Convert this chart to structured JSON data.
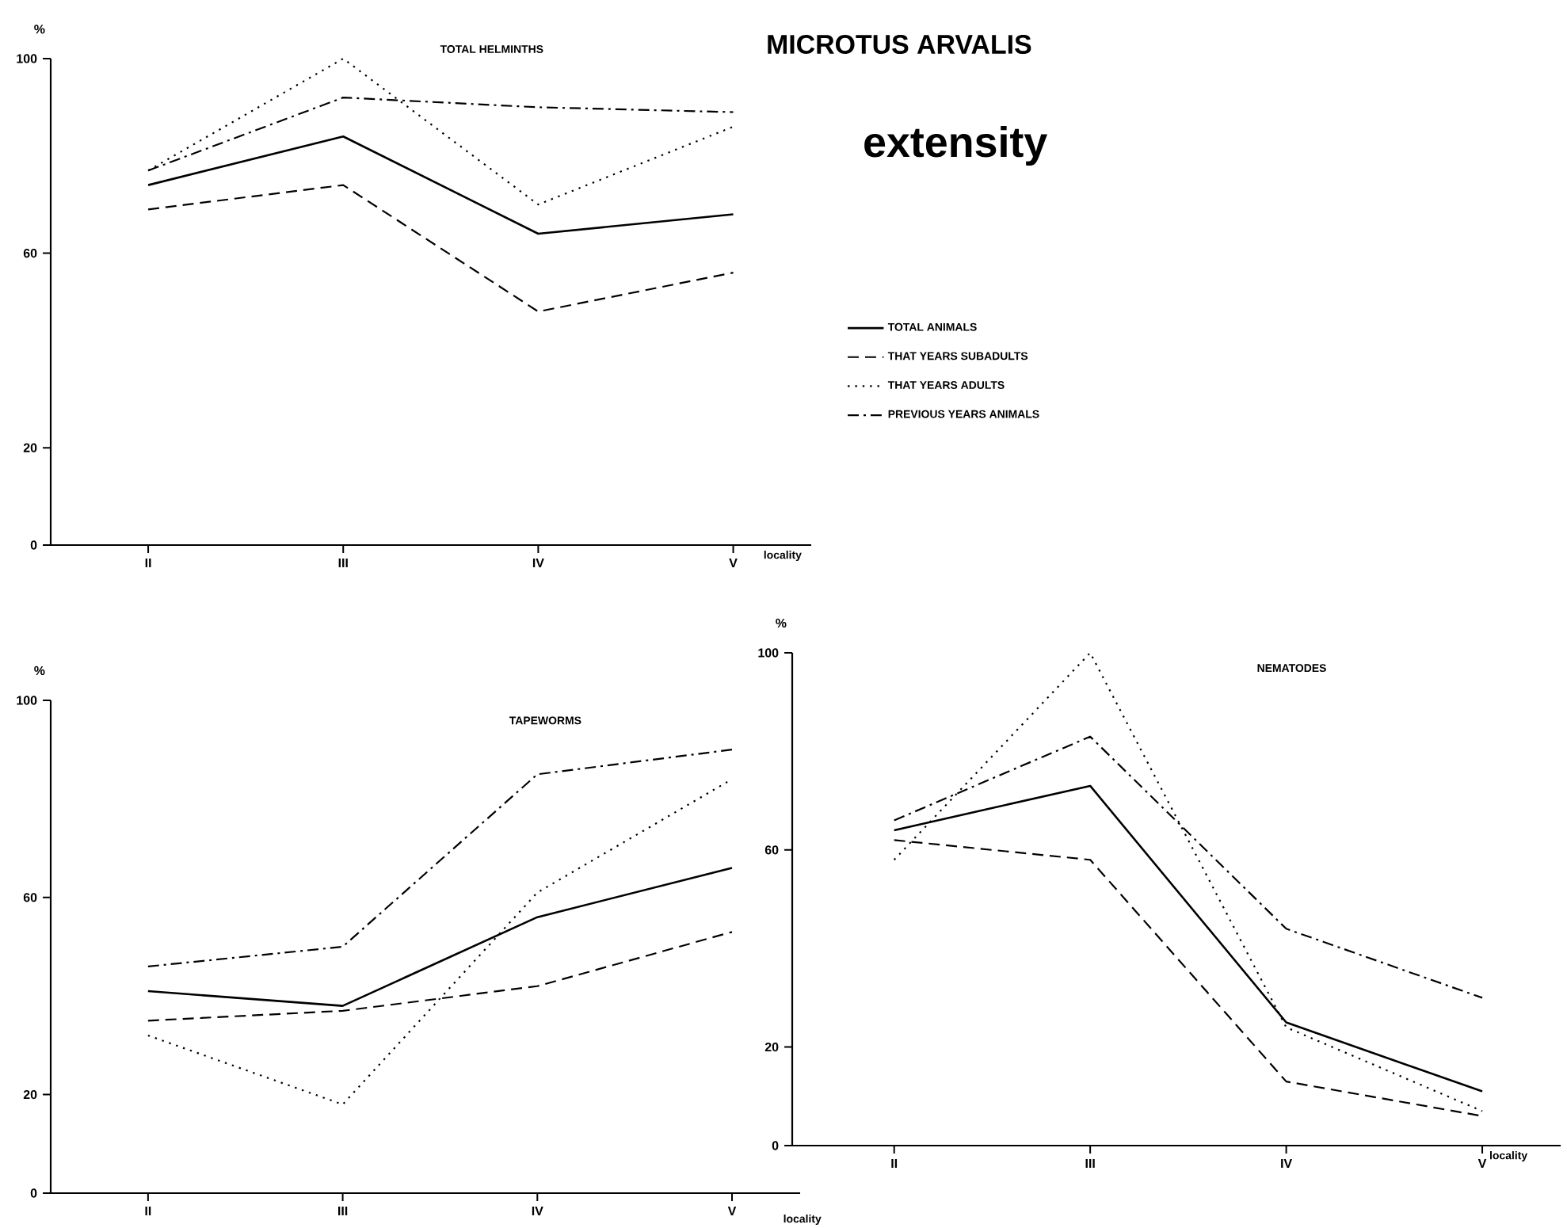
{
  "chart_data": [
    {
      "type": "line",
      "title": "TOTAL HELMINTHS",
      "xlabel": "locality",
      "ylabel": "%",
      "categories": [
        "II",
        "III",
        "IV",
        "V"
      ],
      "ylim": [
        0,
        100
      ],
      "yticks": [
        0,
        20,
        60,
        100
      ],
      "legend": "right",
      "grid": false,
      "marker": "none",
      "series": [
        {
          "name": "TOTAL ANIMALS",
          "color": "#000000",
          "line_style": "solid",
          "values": [
            74,
            84,
            64,
            68
          ]
        },
        {
          "name": "THAT YEARS SUBADULTS",
          "color": "#000000",
          "line_style": "dashed",
          "values": [
            69,
            74,
            48,
            56
          ]
        },
        {
          "name": "THAT YEARS ADULTS",
          "color": "#000000",
          "line_style": "dotted",
          "values": [
            77,
            100,
            70,
            86
          ]
        },
        {
          "name": "PREVIOUS YEARS ANIMALS",
          "color": "#000000",
          "line_style": "dashdot",
          "values": [
            77,
            92,
            90,
            89
          ]
        }
      ]
    },
    {
      "type": "other",
      "title": "MICROTUS ARVALIS",
      "subtitle": "extensity"
    },
    {
      "type": "line",
      "title": "TAPEWORMS",
      "xlabel": "locality",
      "ylabel": "%",
      "categories": [
        "II",
        "III",
        "IV",
        "V"
      ],
      "ylim": [
        0,
        100
      ],
      "yticks": [
        0,
        20,
        60,
        100
      ],
      "grid": false,
      "marker": "none",
      "series": [
        {
          "color": "#000000",
          "line_style": "solid",
          "values": [
            41,
            38,
            56,
            66
          ]
        },
        {
          "color": "#000000",
          "line_style": "dashed",
          "values": [
            35,
            37,
            42,
            53
          ]
        },
        {
          "color": "#000000",
          "line_style": "dotted",
          "values": [
            32,
            18,
            61,
            84
          ]
        },
        {
          "color": "#000000",
          "line_style": "dashdot",
          "values": [
            46,
            50,
            85,
            90
          ]
        }
      ]
    },
    {
      "type": "line",
      "title": "NEMATODES",
      "xlabel": "locality",
      "ylabel": "%",
      "categories": [
        "II",
        "III",
        "IV",
        "V"
      ],
      "ylim": [
        0,
        100
      ],
      "yticks": [
        0,
        20,
        60,
        100
      ],
      "grid": false,
      "marker": "none",
      "series": [
        {
          "color": "#000000",
          "line_style": "solid",
          "values": [
            64,
            73,
            25,
            11
          ]
        },
        {
          "color": "#000000",
          "line_style": "dashed",
          "values": [
            62,
            58,
            13,
            6
          ]
        },
        {
          "color": "#000000",
          "line_style": "dotted",
          "values": [
            58,
            100,
            24,
            7
          ]
        },
        {
          "color": "#000000",
          "line_style": "dashdot",
          "values": [
            66,
            83,
            44,
            30
          ]
        }
      ]
    }
  ]
}
